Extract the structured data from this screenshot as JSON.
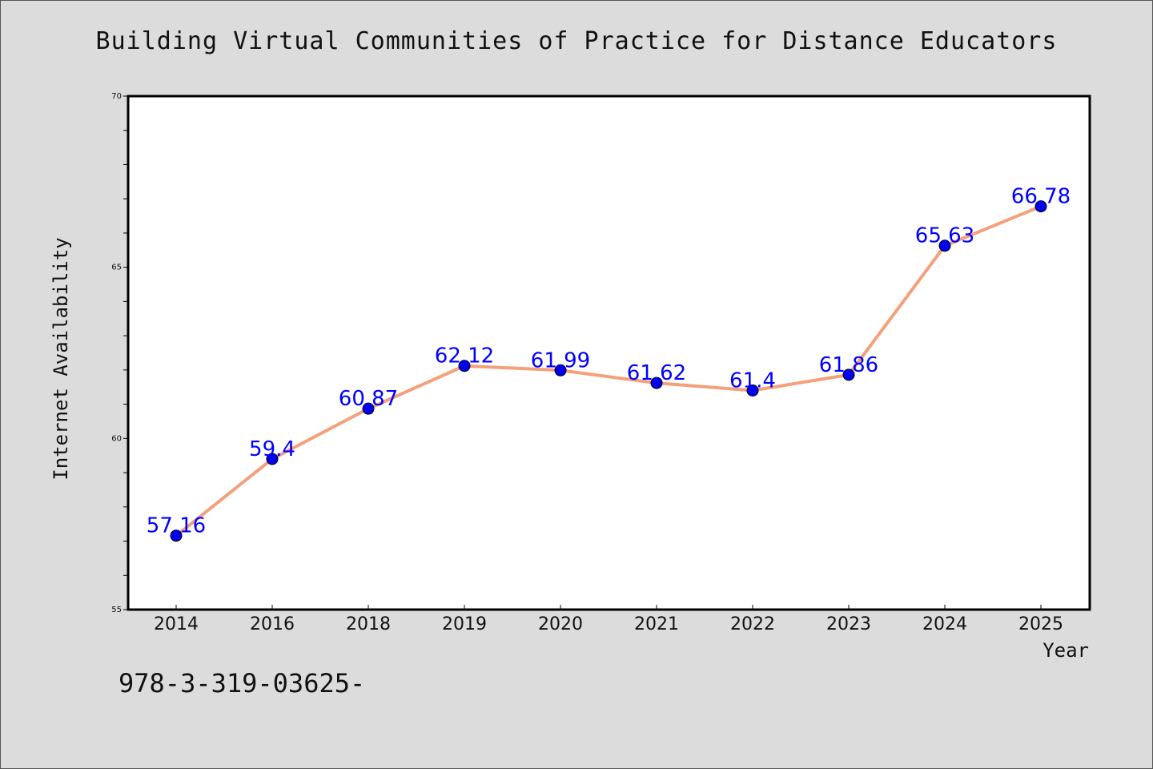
{
  "footer": {
    "text": "978-3-319-03625-"
  },
  "chart_data": {
    "type": "line",
    "title": "Building Virtual Communities of Practice for Distance Educators",
    "xlabel": "Year",
    "ylabel": "Internet Availability",
    "categories": [
      "2014",
      "2016",
      "2018",
      "2019",
      "2020",
      "2021",
      "2022",
      "2023",
      "2024",
      "2025"
    ],
    "series": [
      {
        "values": [
          57.16,
          59.4,
          60.87,
          62.12,
          61.99,
          61.62,
          61.4,
          61.86,
          65.63,
          66.78
        ],
        "labels": [
          "57.16",
          "59.4",
          "60.87",
          "62.12",
          "61.99",
          "61.62",
          "61.4",
          "61.86",
          "65.63",
          "66.78"
        ]
      }
    ],
    "ylim": [
      55,
      70
    ],
    "yticks": [
      "55",
      "60",
      "65",
      "70"
    ],
    "grid": false,
    "legend": "none",
    "colors": {
      "line": "#f4a07a",
      "marker": "#0000ee",
      "label": "#0000ff"
    }
  }
}
